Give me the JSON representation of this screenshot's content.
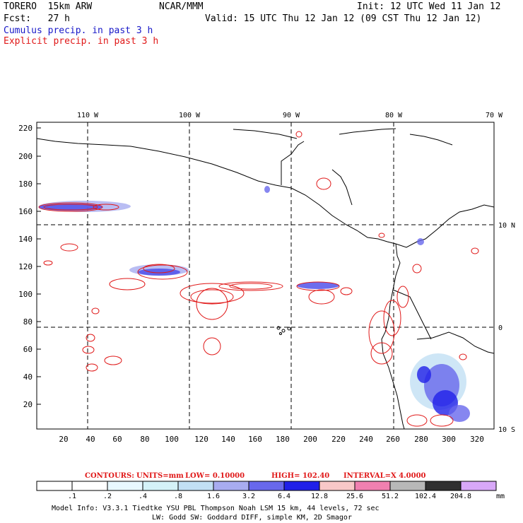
{
  "header": {
    "model": "TORERO  15km ARW",
    "org": "NCAR/MMM",
    "init": "Init: 12 UTC Wed 11 Jan 12",
    "fcst": "Fcst:   27 h",
    "valid": "Valid: 15 UTC Thu 12 Jan 12 (09 CST Thu 12 Jan 12)",
    "legend_cumulus": "Cumulus precip. in past 3 h",
    "legend_explicit": "Explicit precip. in past 3 h"
  },
  "colors": {
    "cumulus": "#1818c8",
    "explicit": "#e01818",
    "coast": "#000000"
  },
  "map": {
    "lon_labels": [
      "110 W",
      "100 W",
      "90 W",
      "80 W",
      "70 W"
    ],
    "lat_labels": [
      "10 N",
      "0",
      "10 S"
    ],
    "y_ticks": [
      "220",
      "200",
      "180",
      "160",
      "140",
      "120",
      "100",
      "80",
      "60",
      "40",
      "20"
    ],
    "x_ticks": [
      "20",
      "40",
      "60",
      "80",
      "100",
      "120",
      "140",
      "160",
      "180",
      "200",
      "220",
      "240",
      "260",
      "280",
      "300",
      "320"
    ]
  },
  "contour_info": {
    "contours": "CONTOURS:",
    "units": "UNITS=mm",
    "low": "LOW= 0.10000",
    "high": "HIGH=  102.40",
    "interval": "INTERVAL=X  4.0000"
  },
  "colorbar": {
    "labels": [
      ".1",
      ".2",
      ".4",
      ".8",
      "1.6",
      "3.2",
      "6.4",
      "12.8",
      "25.6",
      "51.2",
      "102.4",
      "204.8"
    ],
    "unit": "mm",
    "colors": [
      "#ffffff",
      "#ffffff",
      "#e8f8ff",
      "#d4f2f8",
      "#c2e0f4",
      "#a8acf0",
      "#6868ec",
      "#2020e8",
      "#f8c8c8",
      "#f080b0",
      "#b8b8b8",
      "#303030",
      "#d8a8f8"
    ]
  },
  "footer": {
    "line1": "Model Info: V3.3.1   Tiedtke YSU PBL  Thompson    Noah LSM  15 km,   44 levels,   72 sec",
    "line2": "LW: Godd SW: Goddard DIFF, simple KM, 2D Smagor"
  }
}
